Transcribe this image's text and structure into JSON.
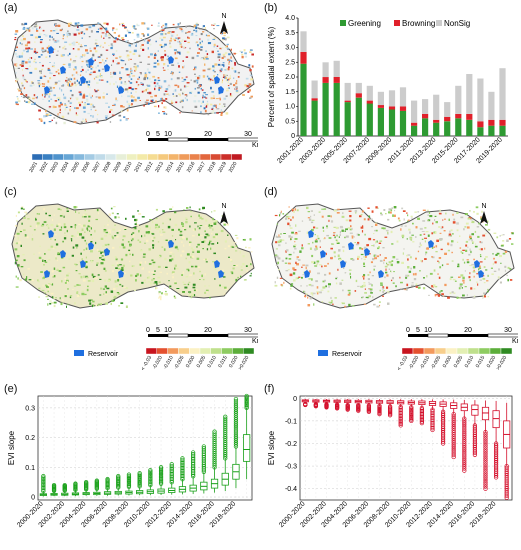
{
  "labels": {
    "a": "(a)",
    "b": "(b)",
    "c": "(c)",
    "d": "(d)",
    "e": "(e)",
    "f": "(f)"
  },
  "north": "N",
  "scalebar": {
    "ticks": [
      "0",
      "5",
      "10",
      "20",
      "30"
    ],
    "unit": "Km"
  },
  "map_a_legend": [
    "2001",
    "2002",
    "2003",
    "2004",
    "2005",
    "2006",
    "2007",
    "2008",
    "2009",
    "2010",
    "2011",
    "2012",
    "2013",
    "2014",
    "2015",
    "2016",
    "2017",
    "2018",
    "2019",
    "2020"
  ],
  "map_a_colors": [
    "#2c6db5",
    "#3a80c2",
    "#4f93cc",
    "#67a6d5",
    "#85b9dd",
    "#a4cbe4",
    "#c0dbe9",
    "#d7e8ea",
    "#e7efd8",
    "#eef0c0",
    "#f3eaa8",
    "#f5dc92",
    "#f5c97d",
    "#f3b46b",
    "#ef9b5a",
    "#ea824b",
    "#e2663d",
    "#d84a33",
    "#cc2f2a",
    "#c01a22"
  ],
  "map_cd_legend": [
    "< -0.03",
    "-0.020",
    "-0.010",
    "-0.005",
    "0.000",
    "0.005",
    "0.010",
    "0.015",
    "0.020",
    ">0.020"
  ],
  "map_cd_colors": [
    "#c8141e",
    "#e4502f",
    "#f39a5d",
    "#f8cf8c",
    "#fbf1c4",
    "#e3efb3",
    "#bfe08c",
    "#8ecc61",
    "#5cae3a",
    "#2f8a22"
  ],
  "reservoir_label": "Reservoir",
  "colors": {
    "greening": "#2e9a32",
    "browning": "#e0202a",
    "nonsig": "#cccccc",
    "green_box": "#18a018",
    "red_box": "#d4102c",
    "reservoir": "#1f6fe0"
  },
  "chart_data": [
    {
      "type": "bar",
      "panel": "b",
      "ylabel": "Percent of spatial extent (%)",
      "ylim": [
        0,
        4.0
      ],
      "yticks": [
        "0",
        "0.5",
        "1.0",
        "1.5",
        "2.0",
        "2.5",
        "3.0",
        "3.5",
        "4.0"
      ],
      "categories": [
        "2001-2020",
        "2002-2020",
        "2003-2020",
        "2004-2020",
        "2005-2020",
        "2006-2020",
        "2007-2020",
        "2008-2020",
        "2009-2020",
        "2010-2020",
        "2011-2020",
        "2012-2020",
        "2013-2020",
        "2014-2020",
        "2015-2020",
        "2016-2020",
        "2017-2020",
        "2018-2020",
        "2019-2020"
      ],
      "xticklabels_shown": [
        "2001-2020",
        "2003-2020",
        "2005-2020",
        "2007-2020",
        "2009-2020",
        "2011-2020",
        "2013-2020",
        "2015-2020",
        "2017-2020",
        "2019-2020"
      ],
      "legend": [
        "Greening",
        "Browning",
        "NonSig"
      ],
      "legend_position": "top",
      "stacked": true,
      "series": [
        {
          "name": "Greening",
          "values": [
            2.45,
            1.2,
            1.8,
            1.8,
            1.15,
            1.3,
            1.1,
            0.95,
            0.9,
            0.85,
            0.35,
            0.6,
            0.45,
            0.5,
            0.6,
            0.55,
            0.3,
            0.35,
            0.35
          ]
        },
        {
          "name": "Browning",
          "values": [
            0.4,
            0.08,
            0.2,
            0.2,
            0.05,
            0.15,
            0.1,
            0.1,
            0.1,
            0.15,
            0.1,
            0.15,
            0.1,
            0.15,
            0.15,
            0.2,
            0.2,
            0.2,
            0.2
          ]
        },
        {
          "name": "NonSig",
          "values": [
            0.7,
            0.6,
            0.5,
            0.55,
            0.6,
            0.35,
            0.5,
            0.45,
            0.55,
            0.65,
            0.75,
            0.5,
            0.85,
            0.5,
            0.95,
            1.35,
            1.45,
            0.95,
            1.75
          ]
        }
      ]
    },
    {
      "type": "box",
      "panel": "e",
      "ylabel": "EVI slope",
      "ylim": [
        -0.01,
        0.34
      ],
      "yticks": [
        "0",
        "0.1",
        "0.2",
        "0.3"
      ],
      "categories": [
        "2000-2020",
        "2001-2020",
        "2002-2020",
        "2003-2020",
        "2004-2020",
        "2005-2020",
        "2006-2020",
        "2007-2020",
        "2008-2020",
        "2009-2020",
        "2010-2020",
        "2011-2020",
        "2012-2020",
        "2013-2020",
        "2014-2020",
        "2015-2020",
        "2016-2020",
        "2017-2020",
        "2018-2020",
        "2019-2020"
      ],
      "xticklabels_shown": [
        "2000-2020",
        "2002-2020",
        "2004-2020",
        "2006-2020",
        "2008-2020",
        "2010-2020",
        "2012-2020",
        "2014-2020",
        "2016-2020",
        "2018-2020"
      ],
      "boxes": [
        {
          "min": 0.002,
          "q1": 0.005,
          "med": 0.008,
          "q3": 0.011,
          "max": 0.02,
          "outlier_max": 0.07
        },
        {
          "min": 0.003,
          "q1": 0.006,
          "med": 0.009,
          "q3": 0.012,
          "max": 0.021,
          "outlier_max": 0.04
        },
        {
          "min": 0.003,
          "q1": 0.006,
          "med": 0.009,
          "q3": 0.013,
          "max": 0.022,
          "outlier_max": 0.04
        },
        {
          "min": 0.003,
          "q1": 0.007,
          "med": 0.01,
          "q3": 0.014,
          "max": 0.024,
          "outlier_max": 0.045
        },
        {
          "min": 0.004,
          "q1": 0.008,
          "med": 0.011,
          "q3": 0.015,
          "max": 0.026,
          "outlier_max": 0.05
        },
        {
          "min": 0.004,
          "q1": 0.008,
          "med": 0.012,
          "q3": 0.016,
          "max": 0.028,
          "outlier_max": 0.055
        },
        {
          "min": 0.004,
          "q1": 0.009,
          "med": 0.013,
          "q3": 0.018,
          "max": 0.03,
          "outlier_max": 0.06
        },
        {
          "min": 0.005,
          "q1": 0.01,
          "med": 0.014,
          "q3": 0.019,
          "max": 0.032,
          "outlier_max": 0.07
        },
        {
          "min": 0.005,
          "q1": 0.01,
          "med": 0.015,
          "q3": 0.02,
          "max": 0.034,
          "outlier_max": 0.075
        },
        {
          "min": 0.006,
          "q1": 0.011,
          "med": 0.016,
          "q3": 0.022,
          "max": 0.036,
          "outlier_max": 0.08
        },
        {
          "min": 0.006,
          "q1": 0.012,
          "med": 0.018,
          "q3": 0.024,
          "max": 0.04,
          "outlier_max": 0.09
        },
        {
          "min": 0.007,
          "q1": 0.013,
          "med": 0.02,
          "q3": 0.027,
          "max": 0.045,
          "outlier_max": 0.1
        },
        {
          "min": 0.008,
          "q1": 0.015,
          "med": 0.022,
          "q3": 0.03,
          "max": 0.05,
          "outlier_max": 0.11
        },
        {
          "min": 0.009,
          "q1": 0.017,
          "med": 0.026,
          "q3": 0.035,
          "max": 0.06,
          "outlier_max": 0.13
        },
        {
          "min": 0.01,
          "q1": 0.02,
          "med": 0.03,
          "q3": 0.04,
          "max": 0.07,
          "outlier_max": 0.15
        },
        {
          "min": 0.012,
          "q1": 0.024,
          "med": 0.036,
          "q3": 0.05,
          "max": 0.085,
          "outlier_max": 0.17
        },
        {
          "min": 0.015,
          "q1": 0.03,
          "med": 0.045,
          "q3": 0.06,
          "max": 0.1,
          "outlier_max": 0.22
        },
        {
          "min": 0.02,
          "q1": 0.04,
          "med": 0.06,
          "q3": 0.08,
          "max": 0.13,
          "outlier_max": 0.27
        },
        {
          "min": 0.03,
          "q1": 0.06,
          "med": 0.085,
          "q3": 0.11,
          "max": 0.17,
          "outlier_max": 0.33
        },
        {
          "min": 0.06,
          "q1": 0.12,
          "med": 0.16,
          "q3": 0.21,
          "max": 0.3,
          "outlier_max": 0.34
        }
      ]
    },
    {
      "type": "box",
      "panel": "f",
      "ylabel": "EVI slope",
      "ylim": [
        -0.45,
        0.01
      ],
      "yticks": [
        "0",
        "-0.1",
        "-0.2",
        "-0.3",
        "-0.4"
      ],
      "categories": [
        "2000-2020",
        "2001-2020",
        "2002-2020",
        "2003-2020",
        "2004-2020",
        "2005-2020",
        "2006-2020",
        "2007-2020",
        "2008-2020",
        "2009-2020",
        "2010-2020",
        "2011-2020",
        "2012-2020",
        "2013-2020",
        "2014-2020",
        "2015-2020",
        "2016-2020",
        "2017-2020",
        "2018-2020",
        "2019-2020"
      ],
      "xticklabels_shown": [
        "2000-2020",
        "2002-2020",
        "2004-2020",
        "2006-2020",
        "2008-2020",
        "2010-2020",
        "2012-2020",
        "2014-2020",
        "2016-2020",
        "2018-2020"
      ],
      "boxes": [
        {
          "min": -0.025,
          "q1": -0.016,
          "med": -0.011,
          "q3": -0.007,
          "max": -0.003,
          "outlier_min": -0.03
        },
        {
          "min": -0.026,
          "q1": -0.017,
          "med": -0.012,
          "q3": -0.007,
          "max": -0.003,
          "outlier_min": -0.035
        },
        {
          "min": -0.027,
          "q1": -0.017,
          "med": -0.012,
          "q3": -0.008,
          "max": -0.003,
          "outlier_min": -0.04
        },
        {
          "min": -0.028,
          "q1": -0.018,
          "med": -0.013,
          "q3": -0.008,
          "max": -0.003,
          "outlier_min": -0.045
        },
        {
          "min": -0.03,
          "q1": -0.019,
          "med": -0.013,
          "q3": -0.008,
          "max": -0.003,
          "outlier_min": -0.05
        },
        {
          "min": -0.03,
          "q1": -0.02,
          "med": -0.014,
          "q3": -0.009,
          "max": -0.003,
          "outlier_min": -0.055
        },
        {
          "min": -0.032,
          "q1": -0.021,
          "med": -0.015,
          "q3": -0.009,
          "max": -0.003,
          "outlier_min": -0.06
        },
        {
          "min": -0.034,
          "q1": -0.022,
          "med": -0.016,
          "q3": -0.01,
          "max": -0.004,
          "outlier_min": -0.07
        },
        {
          "min": -0.036,
          "q1": -0.023,
          "med": -0.017,
          "q3": -0.01,
          "max": -0.004,
          "outlier_min": -0.075
        },
        {
          "min": -0.038,
          "q1": -0.025,
          "med": -0.018,
          "q3": -0.011,
          "max": -0.004,
          "outlier_min": -0.12
        },
        {
          "min": -0.04,
          "q1": -0.026,
          "med": -0.019,
          "q3": -0.012,
          "max": -0.004,
          "outlier_min": -0.1
        },
        {
          "min": -0.043,
          "q1": -0.028,
          "med": -0.02,
          "q3": -0.012,
          "max": -0.004,
          "outlier_min": -0.11
        },
        {
          "min": -0.05,
          "q1": -0.032,
          "med": -0.023,
          "q3": -0.014,
          "max": -0.005,
          "outlier_min": -0.14
        },
        {
          "min": -0.06,
          "q1": -0.036,
          "med": -0.026,
          "q3": -0.016,
          "max": -0.005,
          "outlier_min": -0.2
        },
        {
          "min": -0.07,
          "q1": -0.045,
          "med": -0.032,
          "q3": -0.02,
          "max": -0.006,
          "outlier_min": -0.26
        },
        {
          "min": -0.09,
          "q1": -0.055,
          "med": -0.04,
          "q3": -0.025,
          "max": -0.007,
          "outlier_min": -0.32
        },
        {
          "min": -0.12,
          "q1": -0.075,
          "med": -0.05,
          "q3": -0.03,
          "max": -0.008,
          "outlier_min": -0.25
        },
        {
          "min": -0.15,
          "q1": -0.095,
          "med": -0.065,
          "q3": -0.04,
          "max": -0.01,
          "outlier_min": -0.4
        },
        {
          "min": -0.2,
          "q1": -0.13,
          "med": -0.09,
          "q3": -0.055,
          "max": -0.012,
          "outlier_min": -0.35
        },
        {
          "min": -0.3,
          "q1": -0.22,
          "med": -0.16,
          "q3": -0.1,
          "max": -0.02,
          "outlier_min": -0.44
        }
      ]
    }
  ]
}
